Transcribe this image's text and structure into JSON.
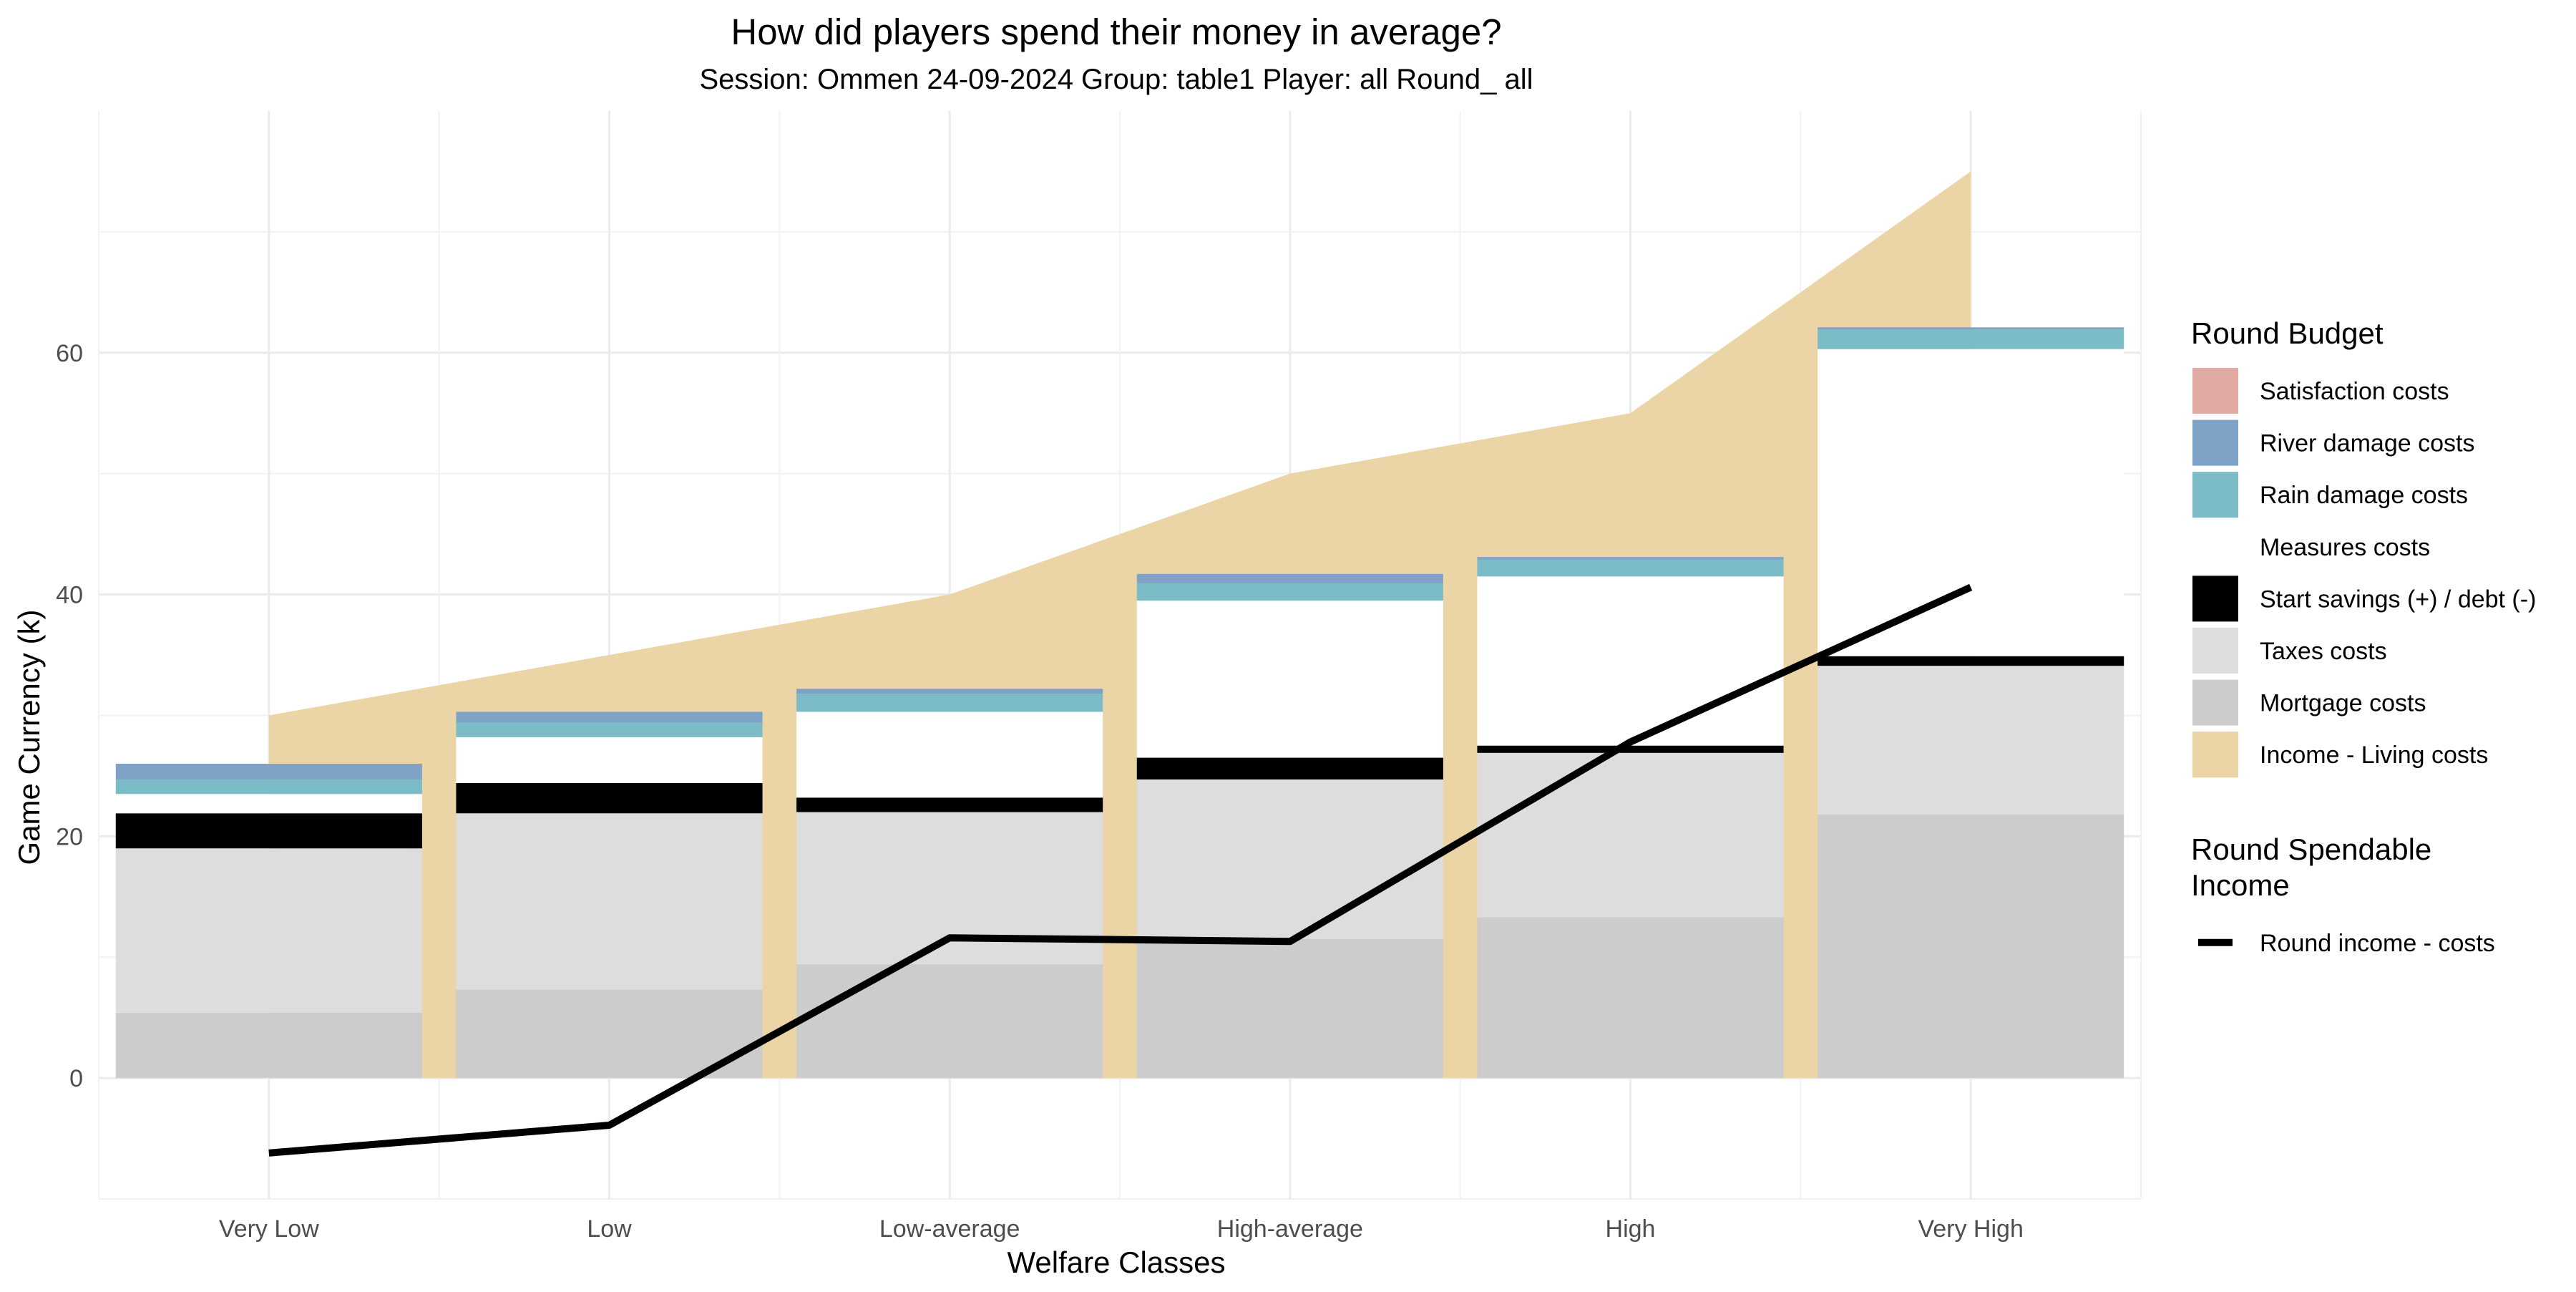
{
  "chart_data": {
    "type": "bar",
    "title": "How did players spend their money in average?",
    "subtitle": "Session: Ommen 24-09-2024 Group: table1 Player: all Round_ all",
    "xlabel": "Welfare Classes",
    "ylabel": "Game Currency (k)",
    "ylim": [
      -10,
      80
    ],
    "yticks": [
      0,
      20,
      40,
      60
    ],
    "grid": true,
    "legend_position": "right",
    "categories": [
      "Very Low",
      "Low",
      "Low-average",
      "High-average",
      "High",
      "Very High"
    ],
    "stacked_bar_series": [
      {
        "name": "Mortgage costs",
        "color": "#cccccc",
        "values": [
          5.4,
          7.3,
          9.4,
          11.5,
          13.3,
          21.8
        ]
      },
      {
        "name": "Taxes costs",
        "color": "#dddddd",
        "values": [
          13.6,
          14.6,
          12.6,
          13.2,
          13.6,
          12.3
        ]
      },
      {
        "name": "Start savings (+) / debt (-)",
        "color": "#000000",
        "values": [
          2.9,
          2.5,
          1.2,
          1.8,
          0.6,
          0.8
        ]
      },
      {
        "name": "Measures costs",
        "color": "#ffffff",
        "values": [
          1.6,
          3.8,
          7.1,
          13.0,
          14.0,
          25.4
        ]
      },
      {
        "name": "Rain damage costs",
        "color": "#7bbcc6",
        "values": [
          1.2,
          1.2,
          1.5,
          1.4,
          1.4,
          1.6
        ]
      },
      {
        "name": "River damage costs",
        "color": "#7fa3c7",
        "values": [
          1.3,
          0.9,
          0.4,
          0.8,
          0.2,
          0.2
        ]
      },
      {
        "name": "Satisfaction costs",
        "color": "#e1aba4",
        "values": [
          0,
          0,
          0,
          0,
          0,
          0
        ]
      }
    ],
    "area_series": {
      "name": "Income - Living costs",
      "color": "#ebd4a5",
      "values": [
        30,
        35,
        40,
        50,
        55,
        75
      ]
    },
    "line_series": {
      "name": "Round income - costs",
      "color": "#000000",
      "values": [
        -6.2,
        -3.9,
        11.6,
        11.3,
        27.8,
        40.6
      ]
    },
    "legends": [
      {
        "title": "Round Budget",
        "items": [
          {
            "label": "Satisfaction costs",
            "color": "#e1aba4",
            "icon": "fill-swatch"
          },
          {
            "label": "River damage costs",
            "color": "#7fa3c7",
            "icon": "fill-swatch"
          },
          {
            "label": "Rain damage costs",
            "color": "#7bbcc6",
            "icon": "fill-swatch"
          },
          {
            "label": "Measures costs",
            "color": "#ffffff",
            "icon": "fill-swatch"
          },
          {
            "label": "Start savings (+) / debt (-)",
            "color": "#000000",
            "icon": "fill-swatch"
          },
          {
            "label": "Taxes costs",
            "color": "#dddddd",
            "icon": "fill-swatch"
          },
          {
            "label": "Mortgage costs",
            "color": "#cccccc",
            "icon": "fill-swatch"
          },
          {
            "label": "Income - Living costs",
            "color": "#ebd4a5",
            "icon": "fill-swatch"
          }
        ]
      },
      {
        "title": "Round Spendable\n Income",
        "items": [
          {
            "label": "Round income - costs",
            "color": "#000000",
            "icon": "line-swatch"
          }
        ]
      }
    ]
  }
}
